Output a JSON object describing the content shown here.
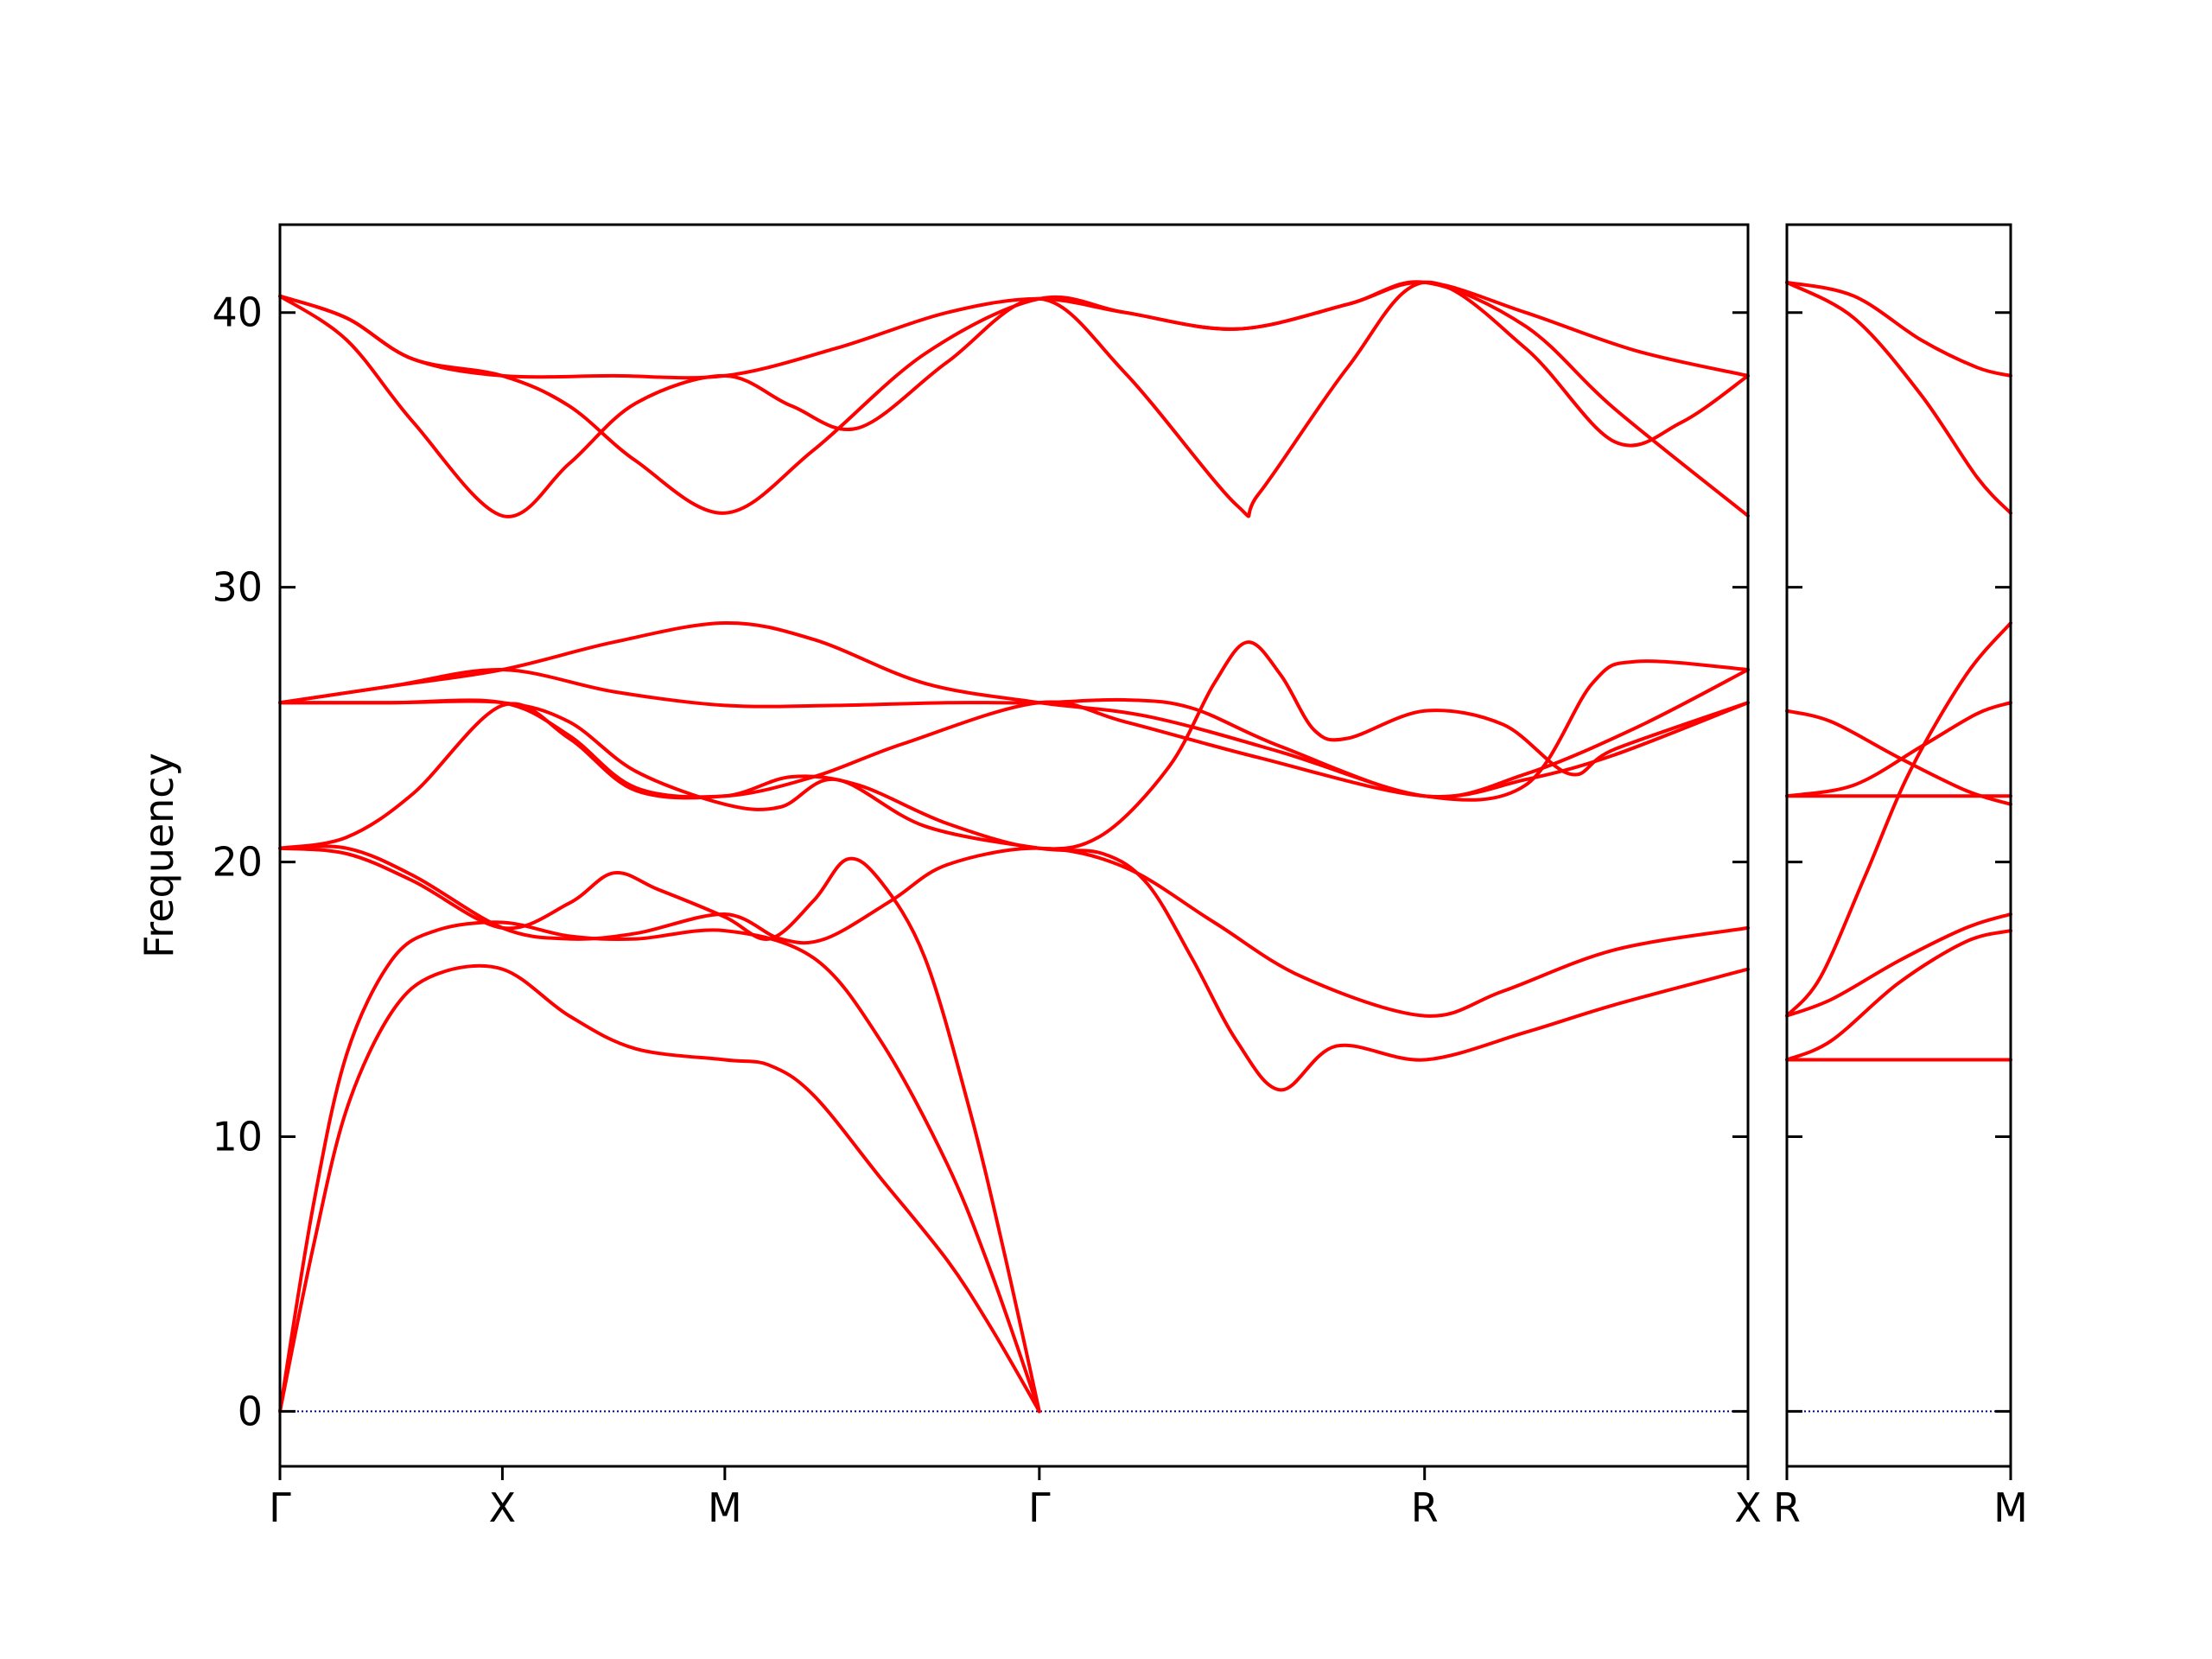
{
  "chart_data": {
    "type": "line",
    "ylabel": "Frequency",
    "ylim": [
      -2,
      43.2
    ],
    "yticks": [
      0,
      10,
      20,
      30,
      40
    ],
    "colors": {
      "bands": "#ff0000",
      "zero_line": "#00008b",
      "axes": "#000000"
    },
    "grid": false,
    "panels": [
      {
        "name": "main",
        "xlim": [
          0,
          6.6
        ],
        "tick_positions": [
          0,
          1,
          2,
          3.414,
          5.146,
          6.6
        ],
        "tick_labels": [
          "Γ",
          "X",
          "M",
          "Γ",
          "R",
          "X"
        ],
        "bands": [
          [
            [
              0,
              0
            ],
            [
              0.15,
              6.0
            ],
            [
              0.3,
              11.0
            ],
            [
              0.5,
              14.5
            ],
            [
              0.7,
              15.9
            ],
            [
              1,
              16.1
            ],
            [
              1.3,
              14.4
            ],
            [
              1.6,
              13.2
            ],
            [
              2,
              12.8
            ],
            [
              2.2,
              12.6
            ],
            [
              2.4,
              11.5
            ],
            [
              2.7,
              8.5
            ],
            [
              3.0,
              5.5
            ],
            [
              3.2,
              3.0
            ],
            [
              3.414,
              0
            ]
          ],
          [
            [
              0,
              0
            ],
            [
              0.15,
              7.5
            ],
            [
              0.3,
              13.0
            ],
            [
              0.5,
              16.4
            ],
            [
              0.7,
              17.5
            ],
            [
              1,
              17.8
            ],
            [
              1.3,
              17.3
            ],
            [
              1.6,
              17.2
            ],
            [
              2,
              17.5
            ],
            [
              2.4,
              16.5
            ],
            [
              2.7,
              13.5
            ],
            [
              3.0,
              9.0
            ],
            [
              3.2,
              5.0
            ],
            [
              3.414,
              0
            ]
          ],
          [
            [
              0,
              20.5
            ],
            [
              0.3,
              20.3
            ],
            [
              0.6,
              19.3
            ],
            [
              1,
              17.6
            ],
            [
              1.3,
              18.5
            ],
            [
              1.5,
              19.6
            ],
            [
              1.7,
              19.0
            ],
            [
              2,
              18.0
            ],
            [
              2.2,
              17.2
            ],
            [
              2.4,
              18.6
            ],
            [
              2.55,
              20.1
            ],
            [
              2.7,
              19.3
            ],
            [
              2.9,
              16.5
            ],
            [
              3.1,
              11.0
            ],
            [
              3.25,
              6.0
            ],
            [
              3.414,
              0
            ]
          ],
          [
            [
              0,
              20.5
            ],
            [
              0.3,
              20.5
            ],
            [
              0.6,
              19.5
            ],
            [
              1,
              17.6
            ],
            [
              1.3,
              17.2
            ],
            [
              1.6,
              17.4
            ],
            [
              2,
              18.1
            ],
            [
              2.25,
              17.2
            ],
            [
              2.45,
              17.2
            ],
            [
              2.75,
              18.6
            ],
            [
              3.0,
              19.9
            ],
            [
              3.414,
              20.5
            ],
            [
              3.8,
              19.8
            ],
            [
              4.2,
              17.8
            ],
            [
              4.6,
              15.8
            ],
            [
              5.146,
              14.4
            ],
            [
              5.5,
              15.3
            ],
            [
              6.0,
              16.8
            ],
            [
              6.6,
              17.6
            ]
          ],
          [
            [
              0,
              20.5
            ],
            [
              0.3,
              20.9
            ],
            [
              0.6,
              22.5
            ],
            [
              1,
              25.7
            ],
            [
              1.3,
              24.5
            ],
            [
              1.6,
              22.6
            ],
            [
              2,
              22.4
            ],
            [
              2.3,
              23.1
            ],
            [
              2.6,
              22.8
            ],
            [
              3.0,
              21.4
            ],
            [
              3.414,
              20.5
            ],
            [
              3.7,
              21.0
            ],
            [
              4.0,
              23.5
            ],
            [
              4.2,
              26.5
            ],
            [
              4.35,
              28.0
            ],
            [
              4.5,
              26.8
            ],
            [
              4.65,
              24.8
            ],
            [
              4.8,
              24.5
            ],
            [
              5.146,
              25.5
            ],
            [
              5.5,
              25.0
            ],
            [
              5.8,
              23.2
            ],
            [
              6.0,
              24.1
            ],
            [
              6.6,
              25.8
            ]
          ],
          [
            [
              0,
              25.8
            ],
            [
              0.5,
              25.8
            ],
            [
              1,
              25.8
            ],
            [
              1.3,
              25.1
            ],
            [
              1.6,
              23.3
            ],
            [
              2,
              22.1
            ],
            [
              2.25,
              22.0
            ],
            [
              2.5,
              23.0
            ],
            [
              2.9,
              21.3
            ],
            [
              3.414,
              20.5
            ],
            [
              3.7,
              20.3
            ],
            [
              3.9,
              19.2
            ],
            [
              4.1,
              16.5
            ],
            [
              4.3,
              13.5
            ],
            [
              4.5,
              11.7
            ],
            [
              4.75,
              13.3
            ],
            [
              5.146,
              12.8
            ],
            [
              5.6,
              13.8
            ],
            [
              6.0,
              14.8
            ],
            [
              6.6,
              16.1
            ]
          ],
          [
            [
              0,
              25.8
            ],
            [
              0.5,
              25.8
            ],
            [
              1,
              25.8
            ],
            [
              1.3,
              24.6
            ],
            [
              1.6,
              22.7
            ],
            [
              2,
              22.4
            ],
            [
              2.4,
              23.1
            ],
            [
              2.8,
              24.3
            ],
            [
              3.414,
              25.8
            ],
            [
              3.8,
              25.1
            ],
            [
              4.4,
              23.8
            ],
            [
              5.146,
              22.4
            ],
            [
              5.6,
              23.0
            ],
            [
              6.0,
              23.9
            ],
            [
              6.6,
              25.8
            ]
          ],
          [
            [
              0,
              25.8
            ],
            [
              0.5,
              26.4
            ],
            [
              1,
              27.0
            ],
            [
              1.5,
              28.0
            ],
            [
              2,
              28.7
            ],
            [
              2.4,
              28.1
            ],
            [
              2.9,
              26.5
            ],
            [
              3.414,
              25.8
            ],
            [
              3.9,
              25.3
            ],
            [
              4.5,
              24.0
            ],
            [
              5.146,
              22.4
            ],
            [
              5.6,
              22.8
            ],
            [
              5.9,
              26.5
            ],
            [
              6.1,
              27.3
            ],
            [
              6.6,
              27.0
            ]
          ],
          [
            [
              0,
              25.8
            ],
            [
              0.5,
              26.4
            ],
            [
              1,
              27.0
            ],
            [
              1.5,
              26.2
            ],
            [
              2,
              25.7
            ],
            [
              2.5,
              25.7
            ],
            [
              3,
              25.8
            ],
            [
              3.414,
              25.8
            ],
            [
              3.8,
              25.9
            ],
            [
              4.1,
              25.6
            ],
            [
              4.5,
              24.2
            ],
            [
              5.146,
              22.4
            ],
            [
              5.6,
              23.2
            ],
            [
              6.1,
              24.9
            ],
            [
              6.6,
              27.0
            ]
          ],
          [
            [
              0,
              40.6
            ],
            [
              0.3,
              39.0
            ],
            [
              0.6,
              36.0
            ],
            [
              1,
              32.6
            ],
            [
              1.3,
              34.5
            ],
            [
              1.6,
              36.7
            ],
            [
              2,
              37.7
            ],
            [
              2.3,
              36.6
            ],
            [
              2.6,
              35.8
            ],
            [
              3.0,
              38.2
            ],
            [
              3.414,
              40.5
            ],
            [
              3.8,
              37.8
            ],
            [
              4.3,
              33.0
            ],
            [
              4.4,
              33.4
            ],
            [
              4.8,
              38.0
            ],
            [
              5.146,
              41.1
            ],
            [
              5.6,
              38.7
            ],
            [
              6.0,
              35.3
            ],
            [
              6.3,
              36.0
            ],
            [
              6.6,
              37.7
            ]
          ],
          [
            [
              0,
              40.6
            ],
            [
              0.3,
              39.8
            ],
            [
              0.6,
              38.3
            ],
            [
              1,
              37.7
            ],
            [
              1.3,
              36.6
            ],
            [
              1.6,
              34.6
            ],
            [
              2,
              32.7
            ],
            [
              2.4,
              35.0
            ],
            [
              2.9,
              38.5
            ],
            [
              3.414,
              40.5
            ],
            [
              3.8,
              40.0
            ],
            [
              4.3,
              39.4
            ],
            [
              4.8,
              40.3
            ],
            [
              5.146,
              41.1
            ],
            [
              5.6,
              39.5
            ],
            [
              6.0,
              36.5
            ],
            [
              6.6,
              32.6
            ]
          ],
          [
            [
              0,
              40.6
            ],
            [
              0.3,
              39.8
            ],
            [
              0.6,
              38.3
            ],
            [
              1,
              37.7
            ],
            [
              1.5,
              37.7
            ],
            [
              2,
              37.7
            ],
            [
              2.5,
              38.7
            ],
            [
              3.0,
              40.0
            ],
            [
              3.414,
              40.5
            ],
            [
              3.8,
              40.0
            ],
            [
              4.3,
              39.4
            ],
            [
              4.8,
              40.3
            ],
            [
              5.146,
              41.1
            ],
            [
              5.6,
              40.0
            ],
            [
              6.1,
              38.6
            ],
            [
              6.6,
              37.7
            ]
          ]
        ]
      },
      {
        "name": "segment",
        "xlim": [
          0,
          1
        ],
        "tick_positions": [
          0,
          1
        ],
        "tick_labels": [
          "R",
          "M"
        ],
        "bands": [
          [
            [
              0,
              12.8
            ],
            [
              1,
              12.8
            ]
          ],
          [
            [
              0,
              12.8
            ],
            [
              0.2,
              13.5
            ],
            [
              0.5,
              15.6
            ],
            [
              0.8,
              17.1
            ],
            [
              1,
              17.5
            ]
          ],
          [
            [
              0,
              14.4
            ],
            [
              0.2,
              15.0
            ],
            [
              0.5,
              16.4
            ],
            [
              0.8,
              17.6
            ],
            [
              1,
              18.1
            ]
          ],
          [
            [
              0,
              14.4
            ],
            [
              0.15,
              15.8
            ],
            [
              0.35,
              19.5
            ],
            [
              0.55,
              23.3
            ],
            [
              0.8,
              26.8
            ],
            [
              1,
              28.7
            ]
          ],
          [
            [
              0,
              22.4
            ],
            [
              1,
              22.4
            ]
          ],
          [
            [
              0,
              22.4
            ],
            [
              0.3,
              22.8
            ],
            [
              0.6,
              24.2
            ],
            [
              0.85,
              25.4
            ],
            [
              1,
              25.8
            ]
          ],
          [
            [
              0,
              25.5
            ],
            [
              0.2,
              25.1
            ],
            [
              0.5,
              23.8
            ],
            [
              0.8,
              22.6
            ],
            [
              1,
              22.1
            ]
          ],
          [
            [
              0,
              41.1
            ],
            [
              0.3,
              39.8
            ],
            [
              0.6,
              37.0
            ],
            [
              0.85,
              34.0
            ],
            [
              1,
              32.7
            ]
          ],
          [
            [
              0,
              41.1
            ],
            [
              0.3,
              40.6
            ],
            [
              0.6,
              39.0
            ],
            [
              0.85,
              38.0
            ],
            [
              1,
              37.7
            ]
          ]
        ]
      }
    ]
  }
}
